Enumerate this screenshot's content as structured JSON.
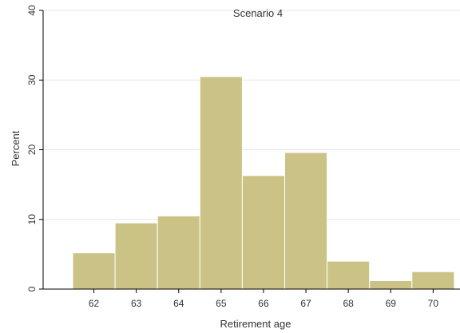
{
  "chart_data": {
    "type": "bar",
    "title": "Scenario 4",
    "xlabel": "Retirement age",
    "ylabel": "Percent",
    "categories": [
      "62",
      "63",
      "64",
      "65",
      "66",
      "67",
      "68",
      "69",
      "70"
    ],
    "values": [
      5.2,
      9.5,
      10.5,
      30.5,
      16.3,
      19.6,
      4.0,
      1.2,
      2.5
    ],
    "ylim": [
      0,
      40
    ],
    "yticks": [
      "0",
      "10",
      "20",
      "30",
      "40"
    ],
    "grid": true,
    "colors": {
      "bar_fill": "#cbc386",
      "bar_stroke": "#ffffff",
      "grid": "#e6e6e6",
      "axis": "#000000"
    }
  }
}
